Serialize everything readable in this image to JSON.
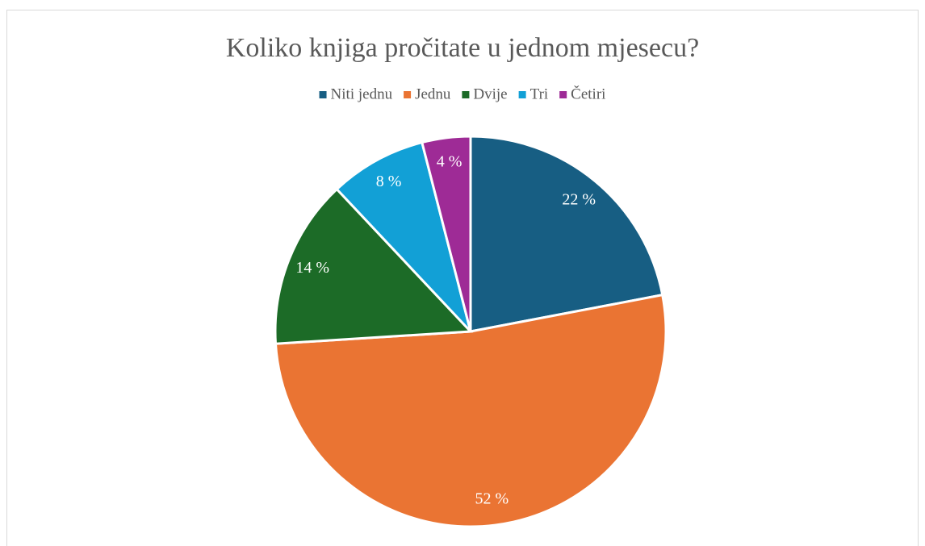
{
  "chart_data": {
    "type": "pie",
    "title": "Koliko knjiga pročitate u jednom mjesecu?",
    "categories": [
      "Niti jednu",
      "Jednu",
      "Dvije",
      "Tri",
      "Četiri"
    ],
    "values": [
      22,
      52,
      14,
      8,
      4
    ],
    "value_labels": [
      "22 %",
      "52 %",
      "14 %",
      "8 %",
      "4 %"
    ],
    "colors": [
      "#175e83",
      "#ea7433",
      "#1c6b27",
      "#12a0d6",
      "#9e2b96"
    ],
    "legend": "top"
  }
}
